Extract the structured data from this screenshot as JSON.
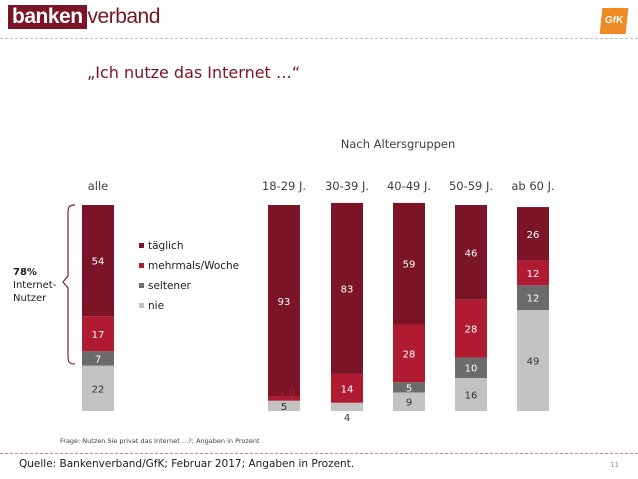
{
  "logo": {
    "part1": "banken",
    "part2": "verband",
    "partner": "GfK"
  },
  "title": "„Ich nutze das Internet …“",
  "question": "Frage: Nutzen Sie privat das Internet …?; Angaben in Prozent",
  "source": "Quelle: Bankenverband/GfK; Februar 2017; Angaben in Prozent.",
  "page_number": "11",
  "colors": {
    "taeglich": "#7a1426",
    "mehrmals_woche": "#b01b32",
    "seltener": "#6b6b6b",
    "nie": "#c3c3c3",
    "brand": "#7a1426",
    "gfk": "#f08a24"
  },
  "chart_data": {
    "type": "bar",
    "stacked": true,
    "subtitle": "Nach Altersgruppen",
    "categories": [
      "alle",
      "18-29 J.",
      "30-39 J.",
      "40-49 J.",
      "50-59 J.",
      "ab 60 J."
    ],
    "series": [
      {
        "name": "nie",
        "values": [
          22,
          5,
          4,
          9,
          16,
          49
        ]
      },
      {
        "name": "seltener",
        "values": [
          7,
          0,
          0,
          5,
          10,
          12
        ]
      },
      {
        "name": "mehrmals/Woche",
        "values": [
          17,
          2,
          14,
          28,
          28,
          12
        ]
      },
      {
        "name": "täglich",
        "values": [
          54,
          93,
          83,
          59,
          46,
          26
        ]
      }
    ],
    "legend_order": [
      "täglich",
      "mehrmals/Woche",
      "seltener",
      "nie"
    ],
    "legend_position": "right of first bar",
    "bracket_annotation": {
      "value": "78%",
      "line1": "Internet-",
      "line2": "Nutzer"
    },
    "ylim": [
      0,
      100
    ],
    "grid": false
  }
}
